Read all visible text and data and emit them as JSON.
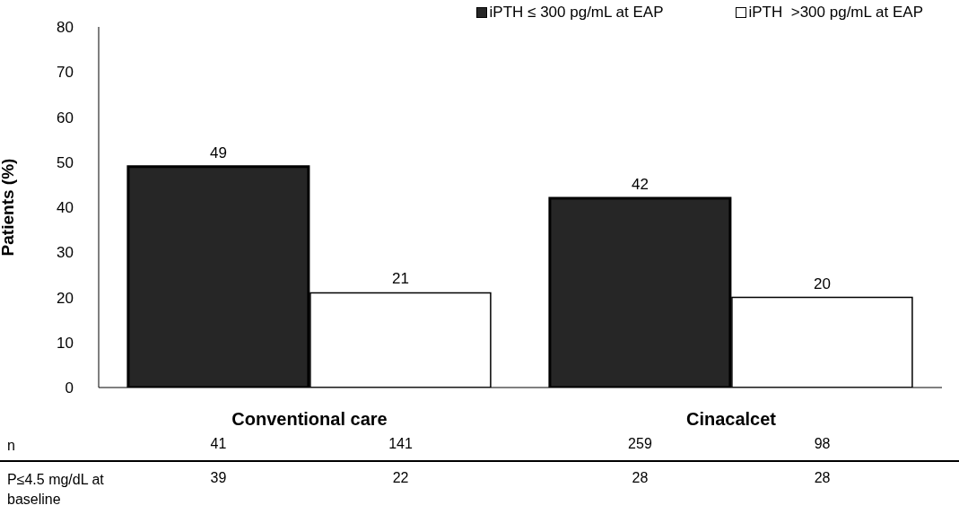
{
  "chart_data": {
    "type": "bar",
    "ylabel": "Patients (%)",
    "categories": [
      "Conventional care",
      "Cinacalcet"
    ],
    "series": [
      {
        "name": "iPTH ≤ 300 pg/mL at EAP",
        "color": "#262626",
        "values": [
          49,
          42
        ]
      },
      {
        "name": "iPTH  >300 pg/mL at EAP",
        "color": "#ffffff",
        "values": [
          21,
          20
        ]
      }
    ],
    "ylim": [
      0,
      80
    ],
    "yticks": [
      0,
      10,
      20,
      30,
      40,
      50,
      60,
      70,
      80
    ],
    "grid": false,
    "legend": "top right",
    "data_labels": true,
    "annotations": [
      "n",
      "41",
      "141",
      "259",
      "98",
      "P≤4.5 mg/dL at baseline",
      "39",
      "22",
      "28",
      "28"
    ]
  }
}
